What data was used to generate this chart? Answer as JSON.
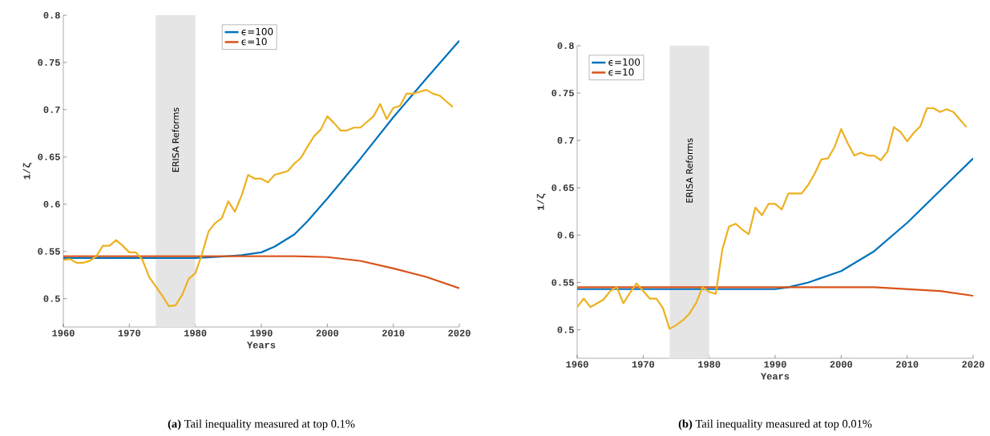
{
  "chart_data": [
    {
      "type": "line",
      "xlabel": "Years",
      "ylabel": "1/ζ",
      "xlim": [
        1960,
        2020
      ],
      "xticks": [
        1960,
        1970,
        1980,
        1990,
        2000,
        2010,
        2020
      ],
      "ylim": [
        0.47,
        0.8
      ],
      "yticks": [
        0.5,
        0.55,
        0.6,
        0.65,
        0.7,
        0.75,
        0.8
      ],
      "legend": "top",
      "bands": [
        {
          "axis": "x",
          "from": 1974,
          "to": 1980,
          "label": "ERISA Reforms",
          "color": "#e5e5e5"
        }
      ],
      "annotations": [
        "**(a)** Tail inequality measured at top 0.1%"
      ],
      "series": [
        {
          "name": "ϵ=100",
          "color": "#0072bd",
          "x": [
            1960,
            1970,
            1980,
            1985,
            1987,
            1990,
            1992,
            1995,
            1997,
            2000,
            2005,
            2010,
            2015,
            2020
          ],
          "values": [
            0.543,
            0.543,
            0.543,
            0.545,
            0.546,
            0.549,
            0.555,
            0.568,
            0.582,
            0.606,
            0.648,
            0.692,
            0.733,
            0.773
          ]
        },
        {
          "name": "ϵ=10",
          "color": "#d95319",
          "x": [
            1960,
            1970,
            1980,
            1990,
            1995,
            2000,
            2005,
            2010,
            2015,
            2020
          ],
          "values": [
            0.545,
            0.545,
            0.545,
            0.545,
            0.545,
            0.544,
            0.54,
            0.532,
            0.523,
            0.511
          ]
        },
        {
          "color": "#edb120",
          "x": [
            1960,
            1961,
            1962,
            1963,
            1964,
            1965,
            1966,
            1967,
            1968,
            1969,
            1970,
            1971,
            1972,
            1973,
            1974,
            1975,
            1976,
            1977,
            1978,
            1979,
            1980,
            1981,
            1982,
            1983,
            1984,
            1985,
            1986,
            1987,
            1988,
            1989,
            1990,
            1991,
            1992,
            1993,
            1994,
            1995,
            1996,
            1997,
            1998,
            1999,
            2000,
            2001,
            2002,
            2003,
            2004,
            2005,
            2006,
            2007,
            2008,
            2009,
            2010,
            2011,
            2012,
            2013,
            2014,
            2015,
            2016,
            2017,
            2018,
            2019
          ],
          "values": [
            0.541,
            0.542,
            0.538,
            0.538,
            0.54,
            0.545,
            0.556,
            0.556,
            0.562,
            0.556,
            0.549,
            0.549,
            0.541,
            0.523,
            0.513,
            0.503,
            0.492,
            0.493,
            0.504,
            0.521,
            0.527,
            0.547,
            0.571,
            0.58,
            0.585,
            0.603,
            0.592,
            0.609,
            0.631,
            0.627,
            0.627,
            0.623,
            0.631,
            0.633,
            0.635,
            0.643,
            0.649,
            0.661,
            0.672,
            0.679,
            0.693,
            0.686,
            0.678,
            0.678,
            0.681,
            0.681,
            0.687,
            0.693,
            0.706,
            0.69,
            0.702,
            0.704,
            0.717,
            0.717,
            0.719,
            0.721,
            0.717,
            0.715,
            0.709,
            0.703
          ]
        }
      ]
    },
    {
      "type": "line",
      "xlabel": "Years",
      "ylabel": "1/ζ",
      "xlim": [
        1960,
        2020
      ],
      "xticks": [
        1960,
        1970,
        1980,
        1990,
        2000,
        2010,
        2020
      ],
      "ylim": [
        0.47,
        0.8
      ],
      "yticks": [
        0.5,
        0.55,
        0.6,
        0.65,
        0.7,
        0.75,
        0.8
      ],
      "legend": "top left",
      "bands": [
        {
          "axis": "x",
          "from": 1974,
          "to": 1980,
          "label": "ERISA Reforms",
          "color": "#e5e5e5"
        }
      ],
      "annotations": [
        "**(b)** Tail inequality measured at top 0.01%"
      ],
      "series": [
        {
          "name": "ϵ=100",
          "color": "#0072bd",
          "x": [
            1960,
            1970,
            1980,
            1985,
            1990,
            1992,
            1995,
            2000,
            2005,
            2010,
            2015,
            2020
          ],
          "values": [
            0.543,
            0.543,
            0.543,
            0.543,
            0.543,
            0.545,
            0.55,
            0.562,
            0.583,
            0.613,
            0.647,
            0.681
          ]
        },
        {
          "name": "ϵ=10",
          "color": "#d95319",
          "x": [
            1960,
            1970,
            1980,
            1990,
            2000,
            2005,
            2010,
            2015,
            2020
          ],
          "values": [
            0.545,
            0.545,
            0.545,
            0.545,
            0.545,
            0.545,
            0.543,
            0.541,
            0.536
          ]
        },
        {
          "color": "#edb120",
          "x": [
            1960,
            1961,
            1962,
            1963,
            1964,
            1965,
            1966,
            1967,
            1968,
            1969,
            1970,
            1971,
            1972,
            1973,
            1974,
            1975,
            1976,
            1977,
            1978,
            1979,
            1980,
            1981,
            1982,
            1983,
            1984,
            1985,
            1986,
            1987,
            1988,
            1989,
            1990,
            1991,
            1992,
            1993,
            1994,
            1995,
            1996,
            1997,
            1998,
            1999,
            2000,
            2001,
            2002,
            2003,
            2004,
            2005,
            2006,
            2007,
            2008,
            2009,
            2010,
            2011,
            2012,
            2013,
            2014,
            2015,
            2016,
            2017,
            2018,
            2019
          ],
          "values": [
            0.524,
            0.533,
            0.524,
            0.528,
            0.532,
            0.541,
            0.545,
            0.528,
            0.539,
            0.549,
            0.541,
            0.533,
            0.533,
            0.523,
            0.501,
            0.505,
            0.51,
            0.517,
            0.528,
            0.545,
            0.54,
            0.538,
            0.585,
            0.609,
            0.612,
            0.606,
            0.601,
            0.629,
            0.621,
            0.633,
            0.633,
            0.627,
            0.644,
            0.644,
            0.644,
            0.653,
            0.665,
            0.68,
            0.681,
            0.693,
            0.712,
            0.697,
            0.684,
            0.687,
            0.684,
            0.684,
            0.679,
            0.688,
            0.714,
            0.709,
            0.699,
            0.708,
            0.715,
            0.734,
            0.734,
            0.73,
            0.733,
            0.73,
            0.722,
            0.714
          ]
        }
      ]
    }
  ]
}
